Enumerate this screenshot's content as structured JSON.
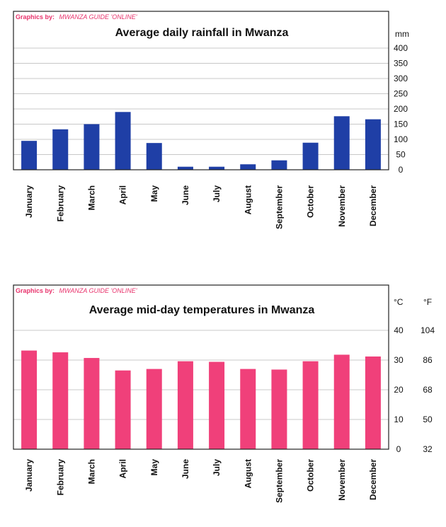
{
  "chart_data": [
    {
      "type": "bar",
      "title": "Average daily rainfall in Mwanza",
      "credit_prefix": "Graphics by:",
      "credit_name": "MWANZA GUIDE 'ONLINE'",
      "unit_label": "mm",
      "categories": [
        "January",
        "February",
        "March",
        "April",
        "May",
        "June",
        "July",
        "August",
        "September",
        "October",
        "November",
        "December"
      ],
      "values": [
        95,
        133,
        150,
        190,
        88,
        10,
        10,
        18,
        31,
        89,
        176,
        166
      ],
      "ylim": [
        0,
        400
      ],
      "yticks": [
        "0",
        "50",
        "100",
        "150",
        "200",
        "250",
        "300",
        "350",
        "400"
      ],
      "grid": true,
      "bar_color": "#1f3fa6",
      "credit_color": "#e8336c"
    },
    {
      "type": "bar",
      "title": "Average mid-day temperatures in Mwanza",
      "credit_prefix": "Graphics by:",
      "credit_name": "MWANZA GUIDE 'ONLINE'",
      "unit_label_c": "°C",
      "unit_label_f": "°F",
      "categories": [
        "January",
        "February",
        "March",
        "April",
        "May",
        "June",
        "July",
        "August",
        "September",
        "October",
        "November",
        "December"
      ],
      "values": [
        33.2,
        32.6,
        30.7,
        26.5,
        27,
        29.6,
        29.4,
        27,
        26.8,
        29.6,
        31.8,
        31.2
      ],
      "ylim": [
        0,
        40
      ],
      "yticks": [
        "0",
        "10",
        "20",
        "30",
        "40"
      ],
      "yticks_f": [
        "32",
        "50",
        "68",
        "86",
        "104"
      ],
      "grid": true,
      "bar_color": "#f0407a",
      "credit_color": "#e8336c"
    }
  ]
}
